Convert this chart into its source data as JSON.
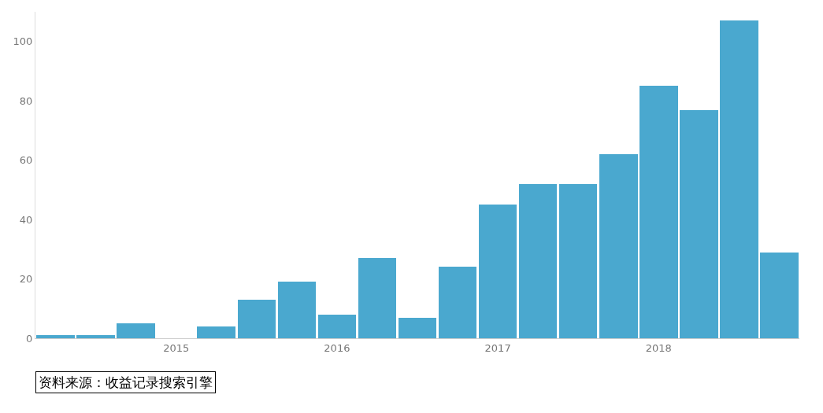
{
  "chart_data": {
    "type": "bar",
    "categories": [
      null,
      null,
      null,
      "2015",
      null,
      null,
      null,
      "2016",
      null,
      null,
      null,
      "2017",
      null,
      null,
      null,
      "2018",
      null,
      null,
      null
    ],
    "values": [
      1,
      1,
      5,
      0,
      4,
      13,
      19,
      8,
      27,
      7,
      24,
      45,
      52,
      52,
      62,
      85,
      77,
      107,
      29
    ],
    "color": "#4aa8cf",
    "ylim": [
      0,
      110
    ],
    "yticks": [
      0,
      20,
      40,
      60,
      80,
      100
    ],
    "legend": false,
    "annotations": [
      "资料来源：收益记录搜索引擎"
    ]
  }
}
